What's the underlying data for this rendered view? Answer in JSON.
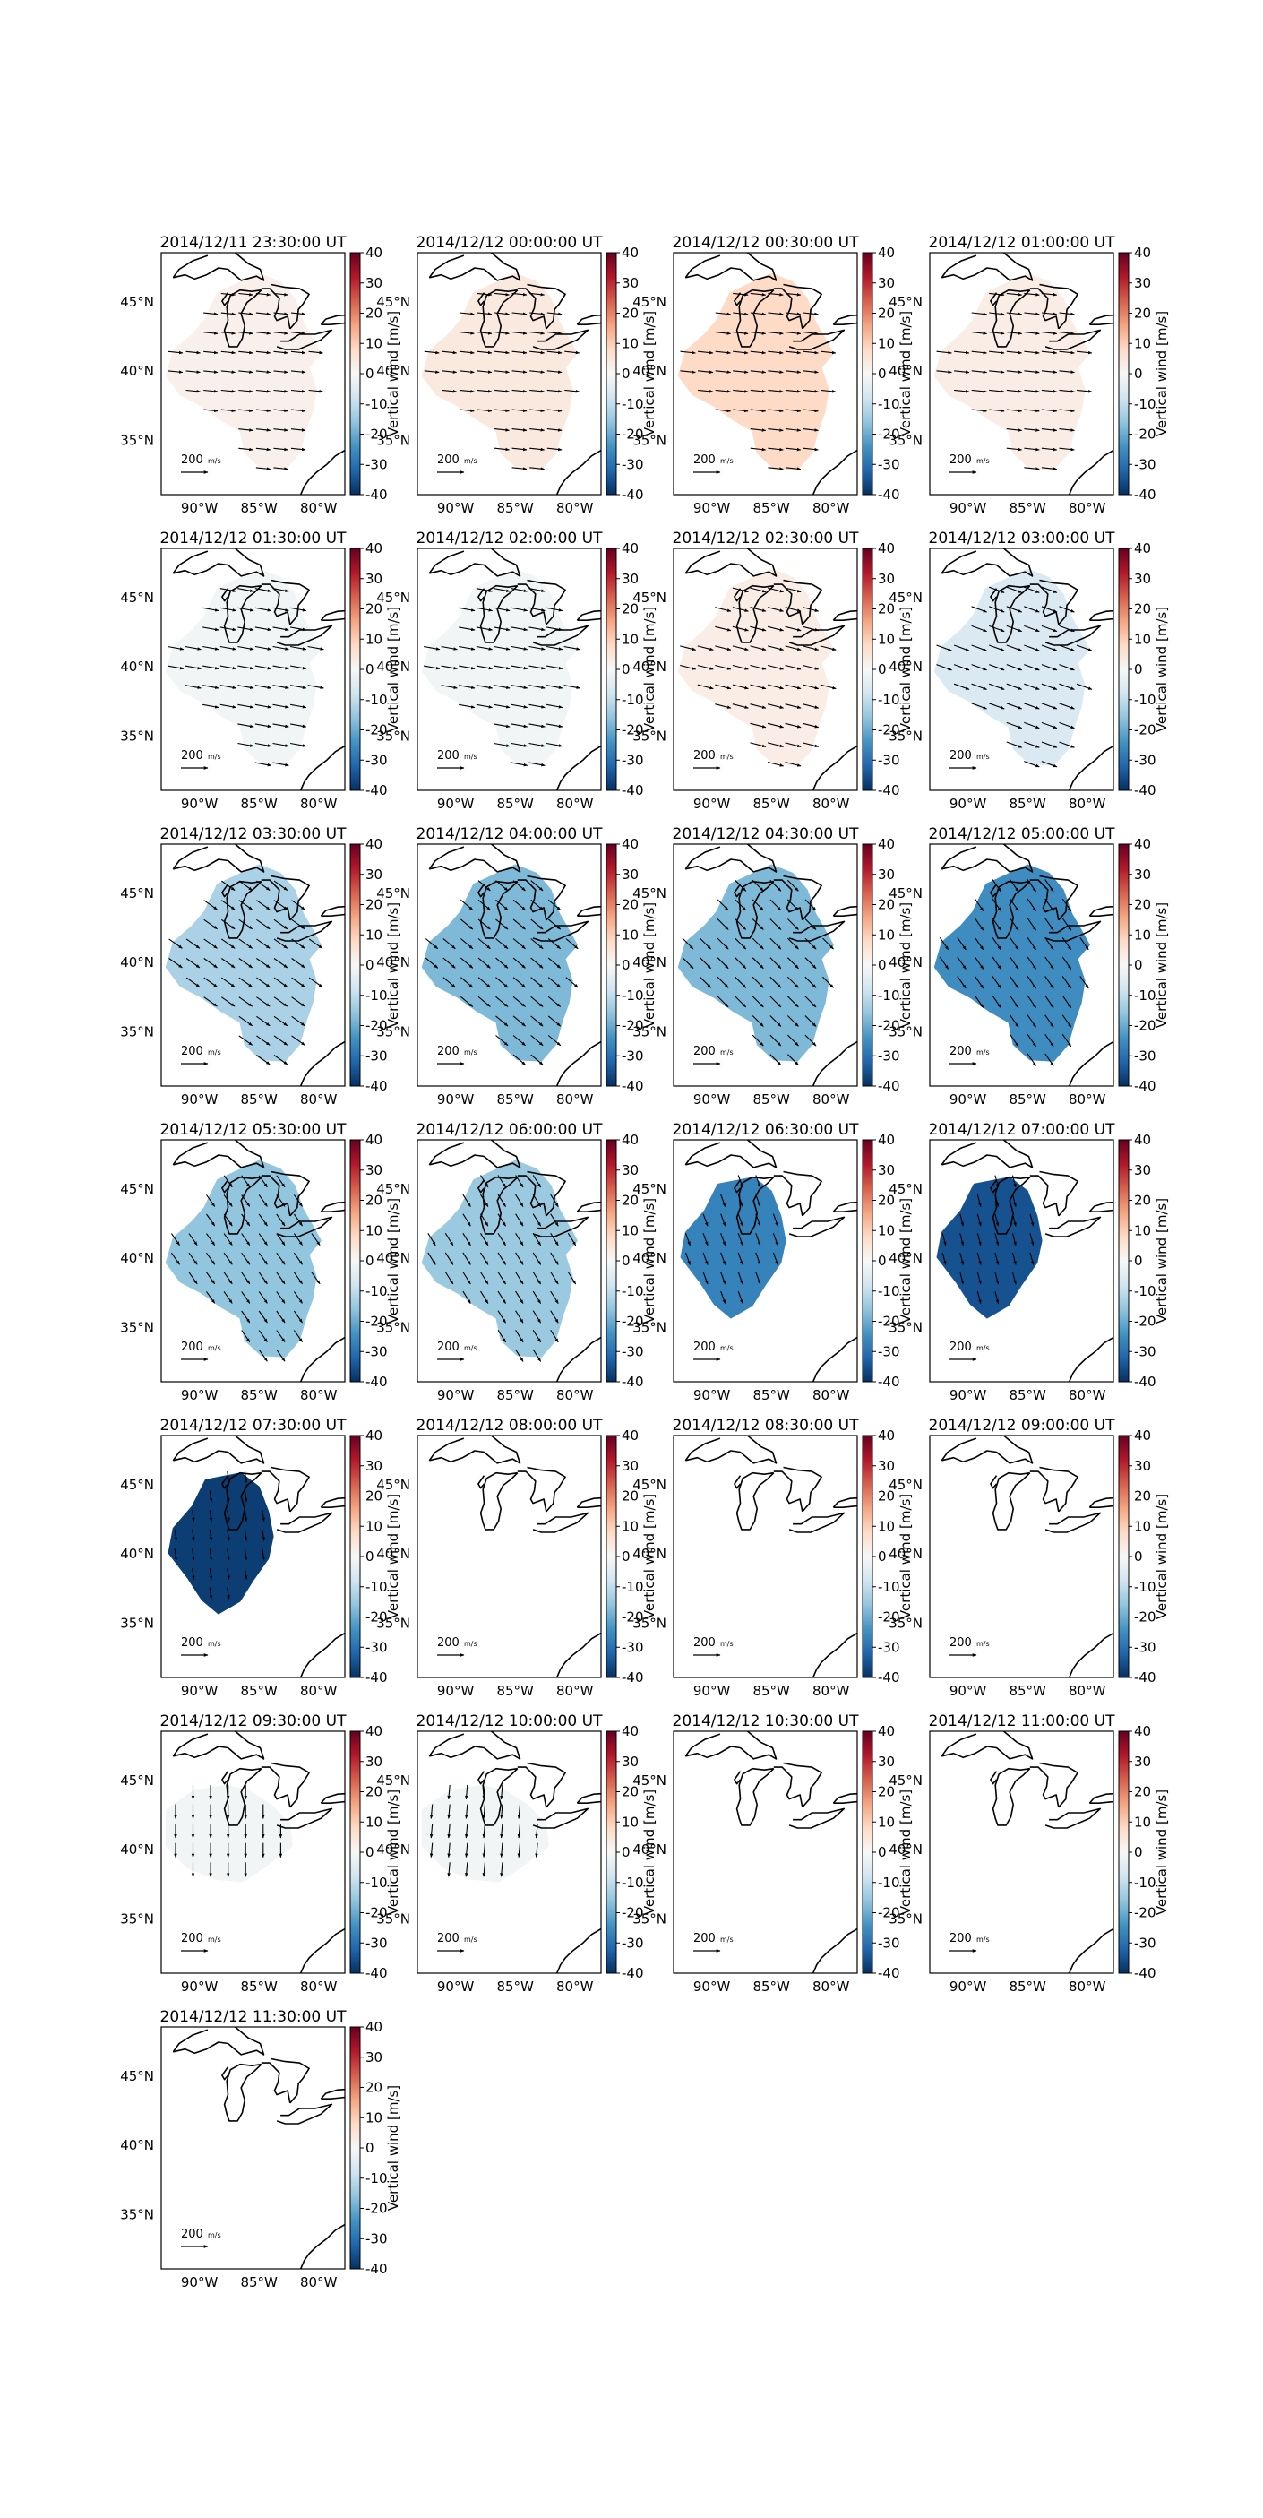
{
  "figure": {
    "colorbar_label": "Vertical wind [m/s]",
    "colorbar_ticks": [
      40,
      30,
      20,
      10,
      0,
      -10,
      -20,
      -30,
      -40
    ],
    "colorbar_range": [
      -40,
      40
    ],
    "lon_ticks": [
      "90°W",
      "85°W",
      "80°W"
    ],
    "lat_ticks": [
      "45°N",
      "40°N",
      "35°N"
    ],
    "lon_range": [
      -93.2,
      -77.8
    ],
    "lat_range": [
      31.0,
      48.5
    ],
    "scale_label": "200",
    "scale_units": "m/s",
    "colormap": [
      "#053061",
      "#2166ac",
      "#4393c3",
      "#92c5de",
      "#d1e5f0",
      "#f7f7f7",
      "#fddbc7",
      "#f4a582",
      "#d6604d",
      "#b2182b",
      "#67001f"
    ],
    "coastline_color": "#000000"
  },
  "chart_data": [
    {
      "type": "heatmap",
      "title": "2014/12/11 23:30:00 UT",
      "vertical_wind_ms": 2,
      "wind_dir_deg": 96,
      "wind_speed_ms": 150,
      "has_data": true
    },
    {
      "type": "heatmap",
      "title": "2014/12/12 00:00:00 UT",
      "vertical_wind_ms": 4,
      "wind_dir_deg": 96,
      "wind_speed_ms": 155,
      "has_data": true
    },
    {
      "type": "heatmap",
      "title": "2014/12/12 00:30:00 UT",
      "vertical_wind_ms": 8,
      "wind_dir_deg": 96,
      "wind_speed_ms": 160,
      "has_data": true
    },
    {
      "type": "heatmap",
      "title": "2014/12/12 01:00:00 UT",
      "vertical_wind_ms": 3,
      "wind_dir_deg": 96,
      "wind_speed_ms": 160,
      "has_data": true
    },
    {
      "type": "heatmap",
      "title": "2014/12/12 01:30:00 UT",
      "vertical_wind_ms": -1,
      "wind_dir_deg": 100,
      "wind_speed_ms": 170,
      "has_data": true
    },
    {
      "type": "heatmap",
      "title": "2014/12/12 02:00:00 UT",
      "vertical_wind_ms": -1,
      "wind_dir_deg": 100,
      "wind_speed_ms": 170,
      "has_data": true
    },
    {
      "type": "heatmap",
      "title": "2014/12/12 02:30:00 UT",
      "vertical_wind_ms": 3,
      "wind_dir_deg": 104,
      "wind_speed_ms": 170,
      "has_data": true
    },
    {
      "type": "heatmap",
      "title": "2014/12/12 03:00:00 UT",
      "vertical_wind_ms": -6,
      "wind_dir_deg": 110,
      "wind_speed_ms": 170,
      "has_data": true
    },
    {
      "type": "heatmap",
      "title": "2014/12/12 03:30:00 UT",
      "vertical_wind_ms": -13,
      "wind_dir_deg": 125,
      "wind_speed_ms": 170,
      "has_data": true
    },
    {
      "type": "heatmap",
      "title": "2014/12/12 04:00:00 UT",
      "vertical_wind_ms": -18,
      "wind_dir_deg": 130,
      "wind_speed_ms": 165,
      "has_data": true
    },
    {
      "type": "heatmap",
      "title": "2014/12/12 04:30:00 UT",
      "vertical_wind_ms": -18,
      "wind_dir_deg": 135,
      "wind_speed_ms": 160,
      "has_data": true
    },
    {
      "type": "heatmap",
      "title": "2014/12/12 05:00:00 UT",
      "vertical_wind_ms": -25,
      "wind_dir_deg": 145,
      "wind_speed_ms": 155,
      "has_data": true
    },
    {
      "type": "heatmap",
      "title": "2014/12/12 05:30:00 UT",
      "vertical_wind_ms": -16,
      "wind_dir_deg": 145,
      "wind_speed_ms": 150,
      "has_data": true
    },
    {
      "type": "heatmap",
      "title": "2014/12/12 06:00:00 UT",
      "vertical_wind_ms": -15,
      "wind_dir_deg": 148,
      "wind_speed_ms": 150,
      "has_data": true
    },
    {
      "type": "heatmap",
      "title": "2014/12/12 06:30:00 UT",
      "vertical_wind_ms": -27,
      "wind_dir_deg": 160,
      "wind_speed_ms": 135,
      "has_data": true
    },
    {
      "type": "heatmap",
      "title": "2014/12/12 07:00:00 UT",
      "vertical_wind_ms": -35,
      "wind_dir_deg": 165,
      "wind_speed_ms": 130,
      "has_data": true
    },
    {
      "type": "heatmap",
      "title": "2014/12/12 07:30:00 UT",
      "vertical_wind_ms": -38,
      "wind_dir_deg": 172,
      "wind_speed_ms": 120,
      "has_data": true
    },
    {
      "type": "heatmap",
      "title": "2014/12/12 08:00:00 UT",
      "has_data": false
    },
    {
      "type": "heatmap",
      "title": "2014/12/12 08:30:00 UT",
      "has_data": false
    },
    {
      "type": "heatmap",
      "title": "2014/12/12 09:00:00 UT",
      "has_data": false
    },
    {
      "type": "heatmap",
      "title": "2014/12/12 09:30:00 UT",
      "vertical_wind_ms": -1,
      "wind_dir_deg": 180,
      "wind_speed_ms": 150,
      "has_data": true
    },
    {
      "type": "heatmap",
      "title": "2014/12/12 10:00:00 UT",
      "vertical_wind_ms": -1,
      "wind_dir_deg": 185,
      "wind_speed_ms": 150,
      "has_data": true
    },
    {
      "type": "heatmap",
      "title": "2014/12/12 10:30:00 UT",
      "has_data": false
    },
    {
      "type": "heatmap",
      "title": "2014/12/12 11:00:00 UT",
      "has_data": false
    },
    {
      "type": "heatmap",
      "title": "2014/12/12 11:30:00 UT",
      "has_data": false
    }
  ]
}
